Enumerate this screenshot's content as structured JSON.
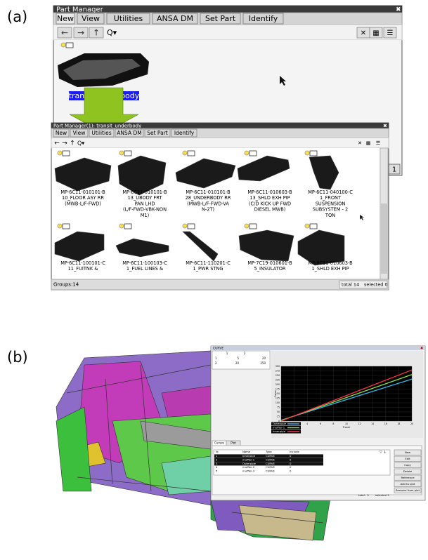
{
  "panel_a": {
    "label": "(a)",
    "window1": {
      "title": "Part Manager",
      "menu": [
        "New",
        "View",
        "Utilities",
        "ANSA DM",
        "Set Part",
        "Identify"
      ],
      "selected_label": "transit_underbody",
      "page": "1"
    },
    "window2": {
      "title": "Part Manager(1): transit_underbody",
      "menu": [
        "New",
        "View",
        "Utilities",
        "ANSA DM",
        "Set Part",
        "Identify"
      ],
      "parts": [
        {
          "lines": [
            "MP-6C11-010101-B",
            "10_FLOOR ASY RR",
            "(MWB-L/F-FWD)"
          ]
        },
        {
          "lines": [
            "MP-6C11-010101-B",
            "13_UBODY FRT",
            "PAN LHD",
            "(L/F-FWD-VBK-NON",
            "M1)"
          ]
        },
        {
          "lines": [
            "MP-6C11-010101-B",
            "28_UNDERBODY RR",
            "(MWB-L/F-FWD-VA",
            "N-2T)"
          ]
        },
        {
          "lines": [
            "MP-6C11-010603-B",
            "13_SHLD EXH PIP",
            "(C/D KICK UP FWD",
            "DIESEL MWB)"
          ]
        },
        {
          "lines": [
            "MP-6C11-040100-C",
            "1_FRONT",
            "SUSPENSION",
            "SUBSYSTEM - 2",
            "TON"
          ]
        },
        {
          "lines": [
            "MP-6C11-100101-C",
            "11_FUITNK &"
          ]
        },
        {
          "lines": [
            "MP-6C11-100103-C",
            "1_FUEL LINES &"
          ]
        },
        {
          "lines": [
            "MP-6C11-110201-C",
            "1_PWR STNG"
          ]
        },
        {
          "lines": [
            "MP-7C19-010601-B",
            "5_INSULATOR"
          ]
        },
        {
          "lines": [
            "MP-8C11-010603-B",
            "1_SHLD EXH PIP"
          ]
        }
      ],
      "status_left": "Groups:14",
      "status_total": "total 14",
      "status_selected": "selected 0"
    }
  },
  "panel_b": {
    "label": "(b)",
    "curve_window": {
      "title": "CURVE",
      "point_table": {
        "header": [
          "1",
          "2"
        ],
        "rows": [
          [
            "1",
            "5",
            "20"
          ],
          [
            "2",
            "20",
            "250"
          ]
        ]
      },
      "chart_data": {
        "type": "line",
        "x_label": "Travel",
        "y_label": "Force",
        "x": [
          0,
          20
        ],
        "xlim": [
          0,
          20
        ],
        "xticks": [
          0,
          2,
          4,
          6,
          8,
          10,
          12,
          14,
          16,
          18,
          20
        ],
        "ylim": [
          0,
          300
        ],
        "yticks": [
          0,
          25,
          50,
          75,
          100,
          125,
          150,
          175,
          200,
          225,
          250,
          275,
          300
        ],
        "series": [
          {
            "name": "Outerpipe",
            "color": "#33b6e8",
            "values": [
              5,
              230
            ]
          },
          {
            "name": "muffler-1",
            "color": "#8be04a",
            "values": [
              3,
              255
            ]
          },
          {
            "name": "Innerpipe",
            "color": "#ff3344",
            "values": [
              0,
              280
            ]
          }
        ]
      },
      "tabs": [
        "Curves",
        "Plot"
      ],
      "table": {
        "header": [
          "Id",
          "Name",
          "Type",
          "Include"
        ],
        "rows": [
          [
            "1",
            "Innerpipe",
            "CURVE",
            "0"
          ],
          [
            "2",
            "muffler-1",
            "CURVE",
            "0"
          ],
          [
            "3",
            "Outerpipe",
            "CURVE",
            "0"
          ],
          [
            "4",
            "muffler-2",
            "CURVE",
            "0"
          ],
          [
            "5",
            "muffler-3",
            "CURVE",
            "0"
          ]
        ]
      },
      "buttons": [
        "New",
        "Edit",
        "Copy",
        "Delete",
        "Reference",
        "Add to plot",
        "Remove from plot"
      ],
      "status_total": "total : 5",
      "status_selected": "selected 3"
    }
  }
}
